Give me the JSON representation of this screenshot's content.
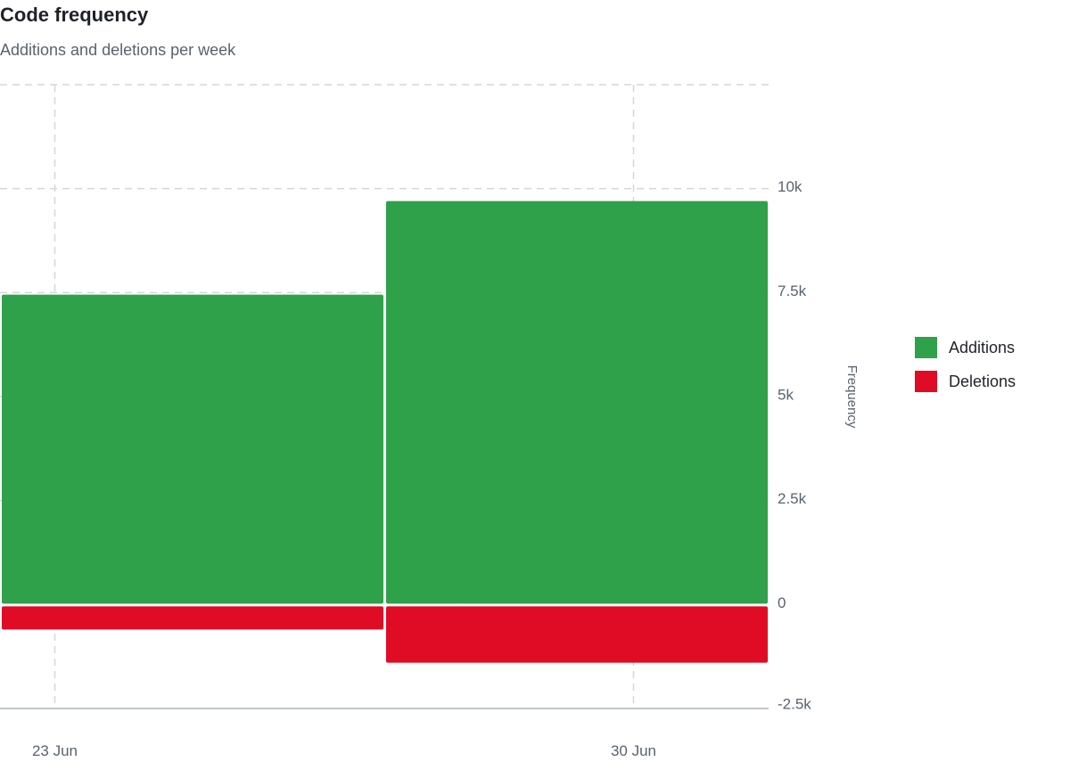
{
  "header": {
    "title": "Code frequency",
    "subtitle": "Additions and deletions per week"
  },
  "chart_data": {
    "type": "bar",
    "categories": [
      "23 Jun",
      "30 Jun"
    ],
    "series": [
      {
        "name": "Additions",
        "values": [
          7450,
          9700
        ],
        "color": "#2fa14a"
      },
      {
        "name": "Deletions",
        "values": [
          -600,
          -1400
        ],
        "color": "#e00b25"
      }
    ],
    "stacked": true,
    "ylabel": "Frequency",
    "ylim": [
      -2500,
      12500
    ],
    "yticks": [
      -2500,
      0,
      2500,
      5000,
      7500,
      10000
    ],
    "ytick_labels": [
      "-2.5k",
      "0",
      "2.5k",
      "5k",
      "7.5k",
      "10k"
    ],
    "grid": true,
    "y_axis_position": "right",
    "legend_position": "right"
  }
}
